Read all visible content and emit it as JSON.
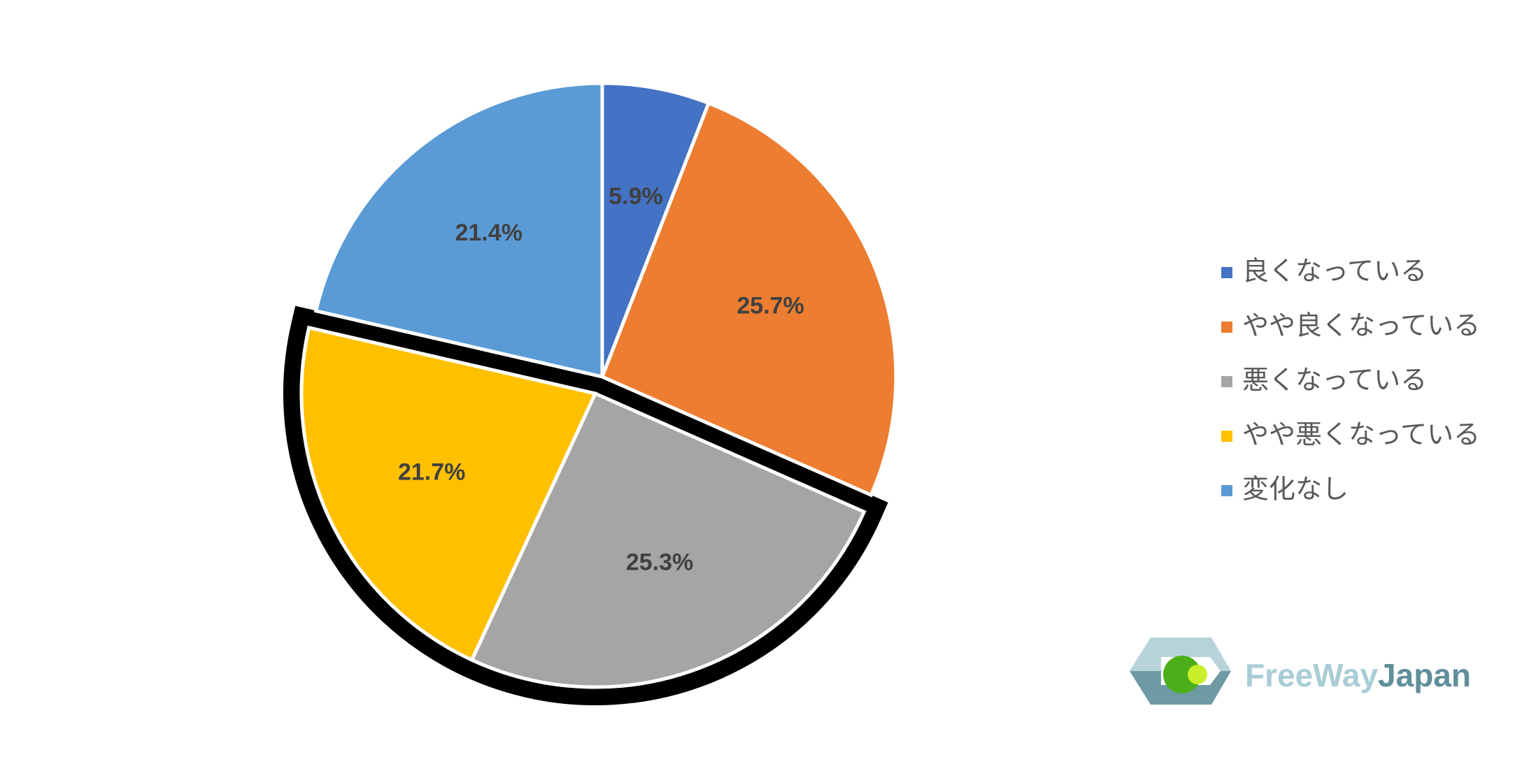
{
  "chart_data": {
    "type": "pie",
    "categories": [
      "良くなっている",
      "やや良くなっている",
      "悪くなっている",
      "やや悪くなっている",
      "変化なし"
    ],
    "values": [
      5.9,
      25.7,
      25.3,
      21.7,
      21.4
    ],
    "value_labels": [
      "5.9%",
      "25.7%",
      "25.3%",
      "21.7%",
      "21.4%"
    ],
    "colors": [
      "#4472c4",
      "#ed7d31",
      "#a5a5a5",
      "#ffc000",
      "#5b9bd5"
    ],
    "exploded": [
      2,
      3
    ],
    "legend": "right"
  },
  "logo": {
    "parts": [
      "FreeWay",
      "Japan"
    ]
  }
}
